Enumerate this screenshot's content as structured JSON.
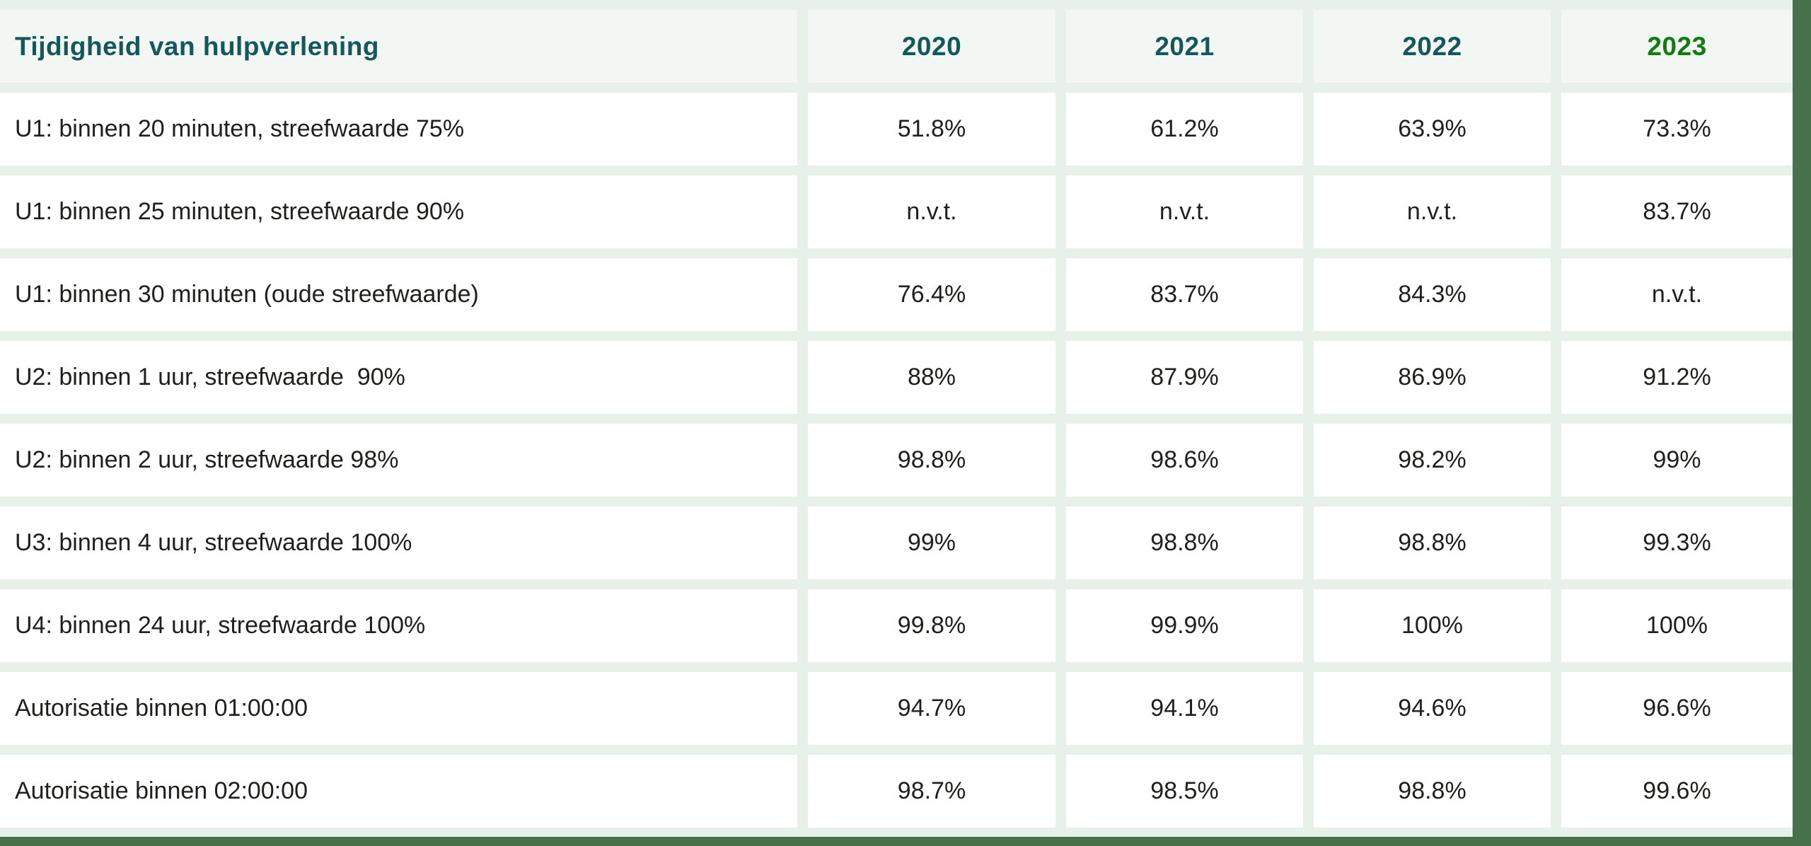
{
  "chart_data": {
    "type": "table",
    "title": "Tijdigheid van hulpverlening",
    "columns": [
      "2020",
      "2021",
      "2022",
      "2023"
    ],
    "highlight_column": "2023",
    "rows": [
      {
        "label": "U1: binnen 20 minuten, streefwaarde 75%",
        "values": [
          "51.8%",
          "61.2%",
          "63.9%",
          "73.3%"
        ]
      },
      {
        "label": "U1: binnen 25 minuten, streefwaarde 90%",
        "values": [
          "n.v.t.",
          "n.v.t.",
          "n.v.t.",
          "83.7%"
        ]
      },
      {
        "label": "U1: binnen 30 minuten (oude streefwaarde)",
        "values": [
          "76.4%",
          "83.7%",
          "84.3%",
          "n.v.t."
        ]
      },
      {
        "label": "U2: binnen 1 uur, streefwaarde  90%",
        "values": [
          "88%",
          "87.9%",
          "86.9%",
          "91.2%"
        ]
      },
      {
        "label": "U2: binnen 2 uur, streefwaarde 98%",
        "values": [
          "98.8%",
          "98.6%",
          "98.2%",
          "99%"
        ]
      },
      {
        "label": "U3: binnen 4 uur, streefwaarde 100%",
        "values": [
          "99%",
          "98.8%",
          "98.8%",
          "99.3%"
        ]
      },
      {
        "label": "U4: binnen 24 uur, streefwaarde 100%",
        "values": [
          "99.8%",
          "99.9%",
          "100%",
          "100%"
        ]
      },
      {
        "label": "Autorisatie binnen 01:00:00",
        "values": [
          "94.7%",
          "94.1%",
          "94.6%",
          "96.6%"
        ]
      },
      {
        "label": "Autorisatie binnen 02:00:00",
        "values": [
          "98.7%",
          "98.5%",
          "98.8%",
          "99.6%"
        ]
      }
    ]
  },
  "colors": {
    "page_bg": "#e7f1e9",
    "header_cell_bg": "#f2f7f3",
    "cell_bg": "#ffffff",
    "teal": "#14585c",
    "green": "#117c12",
    "text": "#1f1f1d",
    "frame_green": "#47714b"
  }
}
